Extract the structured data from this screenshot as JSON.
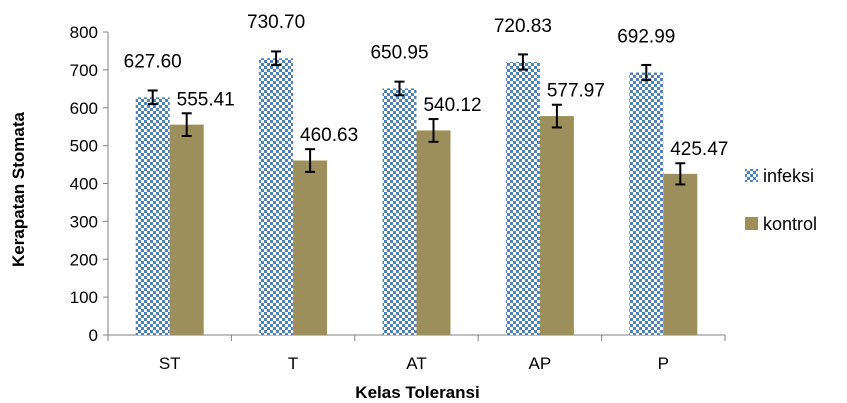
{
  "chart_data": {
    "type": "bar",
    "xlabel": "Kelas Toleransi",
    "ylabel": "Kerapatan Stomata",
    "ylim": [
      0,
      800
    ],
    "yticks": [
      0,
      100,
      200,
      300,
      400,
      500,
      600,
      700,
      800
    ],
    "categories": [
      "ST",
      "T",
      "AT",
      "AP",
      "P"
    ],
    "grid": false,
    "legend_position": "right",
    "series": [
      {
        "name": "infeksi",
        "values": [
          627.6,
          730.7,
          650.95,
          720.83,
          692.99
        ],
        "labels": [
          "627.60",
          "730.70",
          "650.95",
          "720.83",
          "692.99"
        ],
        "errors": [
          18,
          18,
          18,
          20,
          20
        ],
        "pattern": "checkered",
        "color": "#4f81bd"
      },
      {
        "name": "kontrol",
        "values": [
          555.41,
          460.63,
          540.12,
          577.97,
          425.47
        ],
        "labels": [
          "555.41",
          "460.63",
          "540.12",
          "577.97",
          "425.47"
        ],
        "errors": [
          30,
          30,
          30,
          30,
          28
        ],
        "pattern": "solid",
        "color": "#9c8f5c"
      }
    ]
  }
}
